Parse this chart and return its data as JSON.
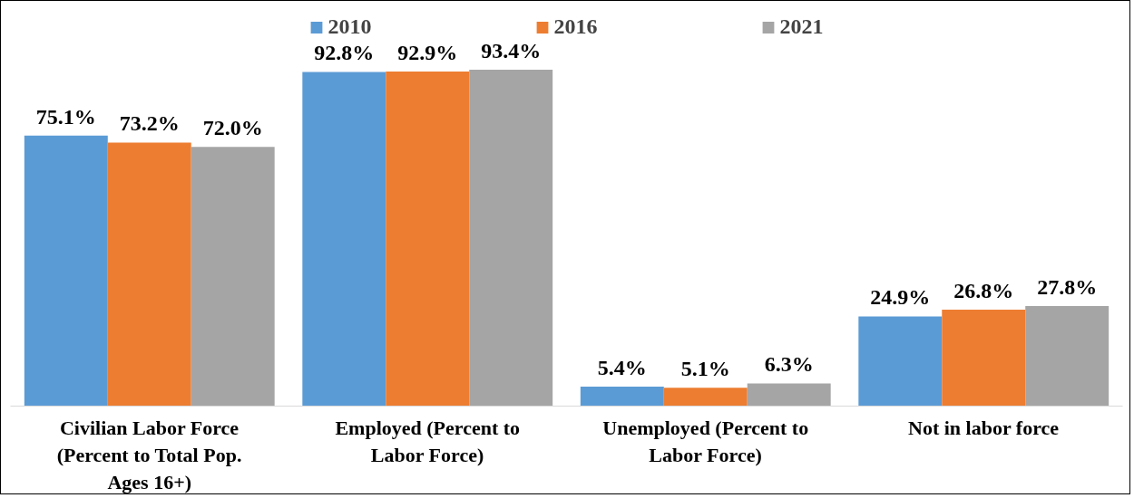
{
  "chart_data": {
    "type": "bar",
    "categories": [
      "Civilian Labor Force (Percent to Total Pop. Ages 16+)",
      "Employed (Percent to Labor Force)",
      "Unemployed (Percent to Labor Force)",
      "Not in labor force"
    ],
    "series": [
      {
        "name": "2010",
        "color": "#5b9bd5",
        "values": [
          75.1,
          92.8,
          5.4,
          24.9
        ],
        "value_labels": [
          "75.1%",
          "92.8%",
          "5.4%",
          "24.9%"
        ]
      },
      {
        "name": "2016",
        "color": "#ed7d31",
        "values": [
          73.2,
          92.9,
          5.1,
          26.8
        ],
        "value_labels": [
          "73.2%",
          "92.9%",
          "5.1%",
          "26.8%"
        ]
      },
      {
        "name": "2021",
        "color": "#a5a5a5",
        "values": [
          72.0,
          93.4,
          6.3,
          27.8
        ],
        "value_labels": [
          "72.0%",
          "93.4%",
          "6.3%",
          "27.8%"
        ]
      }
    ],
    "legend": "top",
    "grid": false
  }
}
